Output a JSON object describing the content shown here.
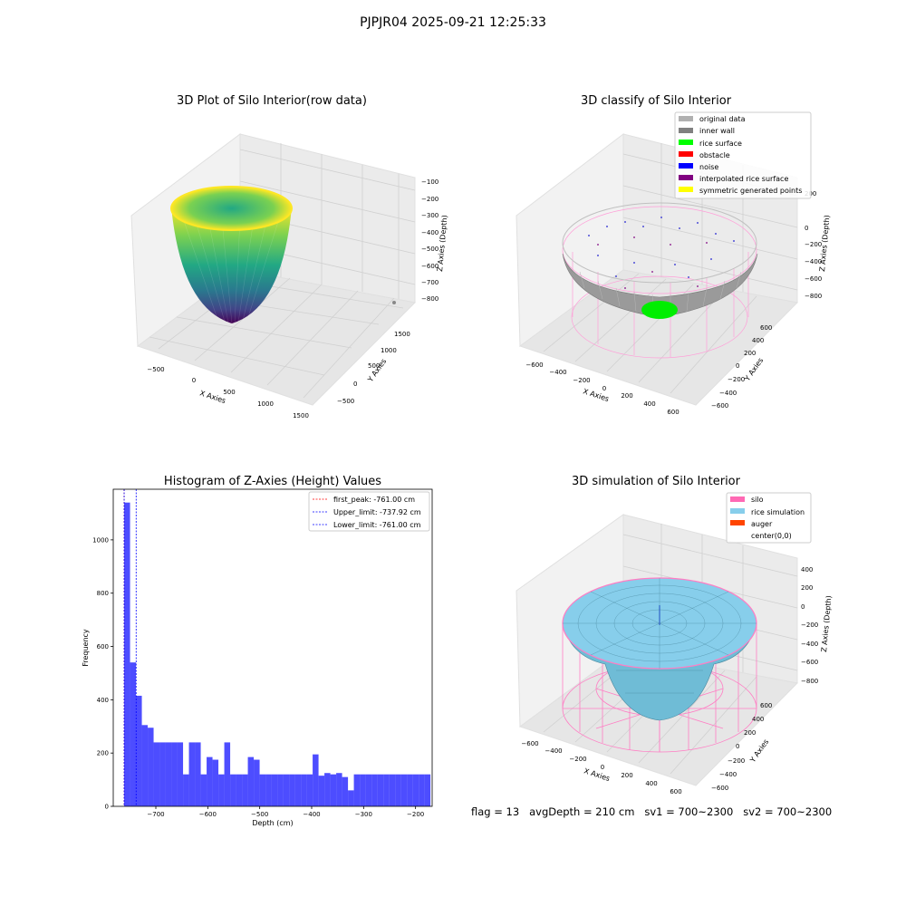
{
  "suptitle": "PJPJR04 2025-09-21 12:25:33",
  "footer": "flag = 13   avgDepth = 210 cm   sv1 = 700~2300   sv2 = 700~2300",
  "colors": {
    "histogram_bar": "#4d4dff",
    "first_peak_line": "#ff0000",
    "limit_lines": "#0000ff",
    "silo_wire": "#ff69b4",
    "rice_surface": "#7ec8e3",
    "inner_wall": "#808080",
    "rice_classified": "#00ff00",
    "viridis_top": "#fde725",
    "viridis_mid": "#21918c",
    "viridis_bottom": "#440154"
  },
  "chart_data": [
    {
      "type": "surface3d",
      "title": "3D Plot of Silo Interior(row data)",
      "xlabel": "X Axies",
      "ylabel": "Y Axies",
      "zlabel": "Z Axies (Depth)",
      "x_ticks": [
        "−500",
        "0",
        "500",
        "1000",
        "1500"
      ],
      "y_ticks": [
        "−500",
        "0",
        "500",
        "1000",
        "1500"
      ],
      "z_ticks": [
        "−100",
        "−200",
        "−300",
        "−400",
        "−500",
        "−600",
        "−700",
        "−800"
      ],
      "xlim": [
        -800,
        1600
      ],
      "ylim": [
        -800,
        1700
      ],
      "zlim": [
        -880,
        -90
      ],
      "colormap": "viridis"
    },
    {
      "type": "scatter3d",
      "title": "3D classify of Silo Interior",
      "xlabel": "X Axies",
      "ylabel": "Y Axies",
      "zlabel": "Z Axies (Depth)",
      "x_ticks": [
        "−600",
        "−400",
        "−200",
        "0",
        "200",
        "400",
        "600"
      ],
      "y_ticks": [
        "−600",
        "−400",
        "−200",
        "0",
        "200",
        "400",
        "600"
      ],
      "z_ticks": [
        "200",
        "0",
        "−200",
        "−400",
        "−600",
        "−800"
      ],
      "legend_position": "upper right",
      "legend": [
        {
          "label": "original data",
          "color": "#b0b0b0"
        },
        {
          "label": "inner wall",
          "color": "#808080"
        },
        {
          "label": "rice surface",
          "color": "#00ff00"
        },
        {
          "label": "obstacle",
          "color": "#ff0000"
        },
        {
          "label": "noise",
          "color": "#0000ff"
        },
        {
          "label": "interpolated rice surface",
          "color": "#800080"
        },
        {
          "label": "symmetric generated points",
          "color": "#ffff00"
        }
      ]
    },
    {
      "type": "bar",
      "title": "Histogram of Z-Axies (Height) Values",
      "xlabel": "Depth (cm)",
      "ylabel": "Frequency",
      "xlim": [
        -782,
        -168
      ],
      "ylim": [
        0,
        1190
      ],
      "x_ticks": [
        -700,
        -600,
        -500,
        -400,
        -300,
        -200
      ],
      "x_tick_labels": [
        "−700",
        "−600",
        "−500",
        "−400",
        "−300",
        "−200"
      ],
      "y_ticks": [
        0,
        200,
        400,
        600,
        800,
        1000
      ],
      "y_tick_labels": [
        "0",
        "200",
        "400",
        "600",
        "800",
        "1000"
      ],
      "bin_width": 11.34,
      "bin_start": -761,
      "values": [
        1140,
        540,
        415,
        305,
        295,
        240,
        240,
        240,
        240,
        240,
        120,
        240,
        240,
        120,
        185,
        175,
        120,
        240,
        120,
        120,
        120,
        185,
        175,
        120,
        120,
        120,
        120,
        120,
        120,
        120,
        120,
        120,
        195,
        115,
        125,
        120,
        125,
        110,
        60,
        120,
        120,
        120,
        120,
        120,
        120,
        120,
        120,
        120,
        120,
        120,
        120,
        120
      ],
      "vlines": [
        {
          "name": "first_peak: -761.00 cm",
          "x": -761.0,
          "color": "#ff0000"
        },
        {
          "name": "Upper_limit: -737.92 cm",
          "x": -737.92,
          "color": "#0000ff"
        },
        {
          "name": "Lower_limit: -761.00 cm",
          "x": -761.0,
          "color": "#0000ff"
        }
      ],
      "legend_position": "upper right"
    },
    {
      "type": "surface3d",
      "title": "3D simulation of Silo Interior",
      "xlabel": "X Axies",
      "ylabel": "Y Axies",
      "zlabel": "Z Axies (Depth)",
      "x_ticks": [
        "−600",
        "−400",
        "−200",
        "0",
        "200",
        "400",
        "600"
      ],
      "y_ticks": [
        "−600",
        "−400",
        "−200",
        "0",
        "200",
        "400",
        "600"
      ],
      "z_ticks": [
        "400",
        "200",
        "0",
        "−200",
        "−400",
        "−600",
        "−800"
      ],
      "legend_position": "upper right",
      "legend": [
        {
          "label": "silo",
          "color": "#ff69b4"
        },
        {
          "label": "rice simulation",
          "color": "#87ceeb"
        },
        {
          "label": "auger",
          "color": "#ff4500"
        },
        {
          "label": "center(0,0)",
          "color": ""
        }
      ]
    }
  ]
}
